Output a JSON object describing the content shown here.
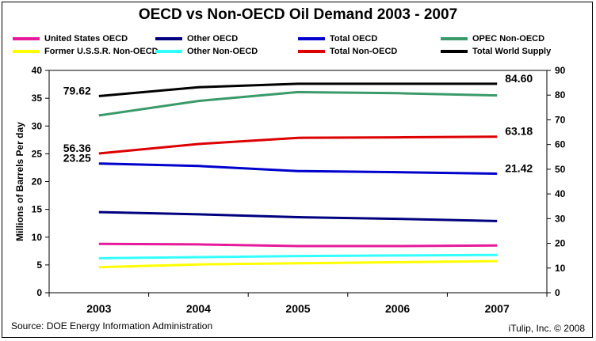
{
  "title": "OECD vs Non-OECD Oil Demand 2003 - 2007",
  "source": "Source: DOE Energy Information Administration",
  "copyright": "iTulip, Inc. © 2008",
  "legend": [
    {
      "name": "United States OECD",
      "color": "#e6199b"
    },
    {
      "name": "Other OECD",
      "color": "#00007f"
    },
    {
      "name": "Total OECD",
      "color": "#0000cc"
    },
    {
      "name": "OPEC Non-OECD",
      "color": "#3a9a6a"
    },
    {
      "name": "Former U.S.S.R. Non-OECD",
      "color": "#ffff00"
    },
    {
      "name": "Other Non-OECD",
      "color": "#33ffff"
    },
    {
      "name": "Total Non-OECD",
      "color": "#dd0000"
    },
    {
      "name": "Total World Supply",
      "color": "#000000"
    }
  ],
  "chart_data": {
    "type": "line",
    "x": [
      "2003",
      "2004",
      "2005",
      "2006",
      "2007"
    ],
    "ylabel": "Millions of Barrels Per day",
    "ylim": [
      0,
      40
    ],
    "y_ticks": [
      0,
      5,
      10,
      15,
      20,
      25,
      30,
      35,
      40
    ],
    "y2lim": [
      0,
      90
    ],
    "y2_ticks": [
      0,
      10,
      20,
      30,
      40,
      50,
      60,
      70,
      80,
      90
    ],
    "grid": false,
    "legend_position": "top",
    "series": [
      {
        "name": "United States OECD",
        "axis": "left",
        "color": "#e6199b",
        "values": [
          8.8,
          8.7,
          8.4,
          8.4,
          8.5
        ]
      },
      {
        "name": "Other OECD",
        "axis": "left",
        "color": "#00007f",
        "values": [
          14.5,
          14.1,
          13.6,
          13.3,
          12.9
        ]
      },
      {
        "name": "Total OECD",
        "axis": "left",
        "color": "#0000cc",
        "values": [
          23.25,
          22.8,
          21.9,
          21.7,
          21.42
        ]
      },
      {
        "name": "OPEC Non-OECD",
        "axis": "left",
        "color": "#3a9a6a",
        "values": [
          31.9,
          34.5,
          36.1,
          35.9,
          35.5
        ]
      },
      {
        "name": "Former U.S.S.R. Non-OECD",
        "axis": "left",
        "color": "#ffff00",
        "values": [
          4.6,
          5.1,
          5.3,
          5.5,
          5.7
        ]
      },
      {
        "name": "Other Non-OECD",
        "axis": "left",
        "color": "#33ffff",
        "values": [
          6.2,
          6.4,
          6.6,
          6.7,
          6.8
        ]
      },
      {
        "name": "Total Non-OECD",
        "axis": "right",
        "color": "#dd0000",
        "values": [
          56.36,
          60.2,
          62.7,
          62.9,
          63.18
        ]
      },
      {
        "name": "Total World Supply",
        "axis": "right",
        "color": "#000000",
        "values": [
          79.62,
          83.2,
          84.6,
          84.6,
          84.6
        ]
      }
    ],
    "annotations": [
      {
        "text": "79.62",
        "x": "2003",
        "value": 79.62,
        "axis": "right",
        "side": "left"
      },
      {
        "text": "56.36",
        "x": "2003",
        "value": 56.36,
        "axis": "right",
        "side": "left"
      },
      {
        "text": "23.25",
        "x": "2003",
        "value": 23.25,
        "axis": "left",
        "side": "left"
      },
      {
        "text": "84.60",
        "x": "2007",
        "value": 84.6,
        "axis": "right",
        "side": "right"
      },
      {
        "text": "63.18",
        "x": "2007",
        "value": 63.18,
        "axis": "right",
        "side": "right"
      },
      {
        "text": "21.42",
        "x": "2007",
        "value": 21.42,
        "axis": "left",
        "side": "right"
      }
    ]
  }
}
